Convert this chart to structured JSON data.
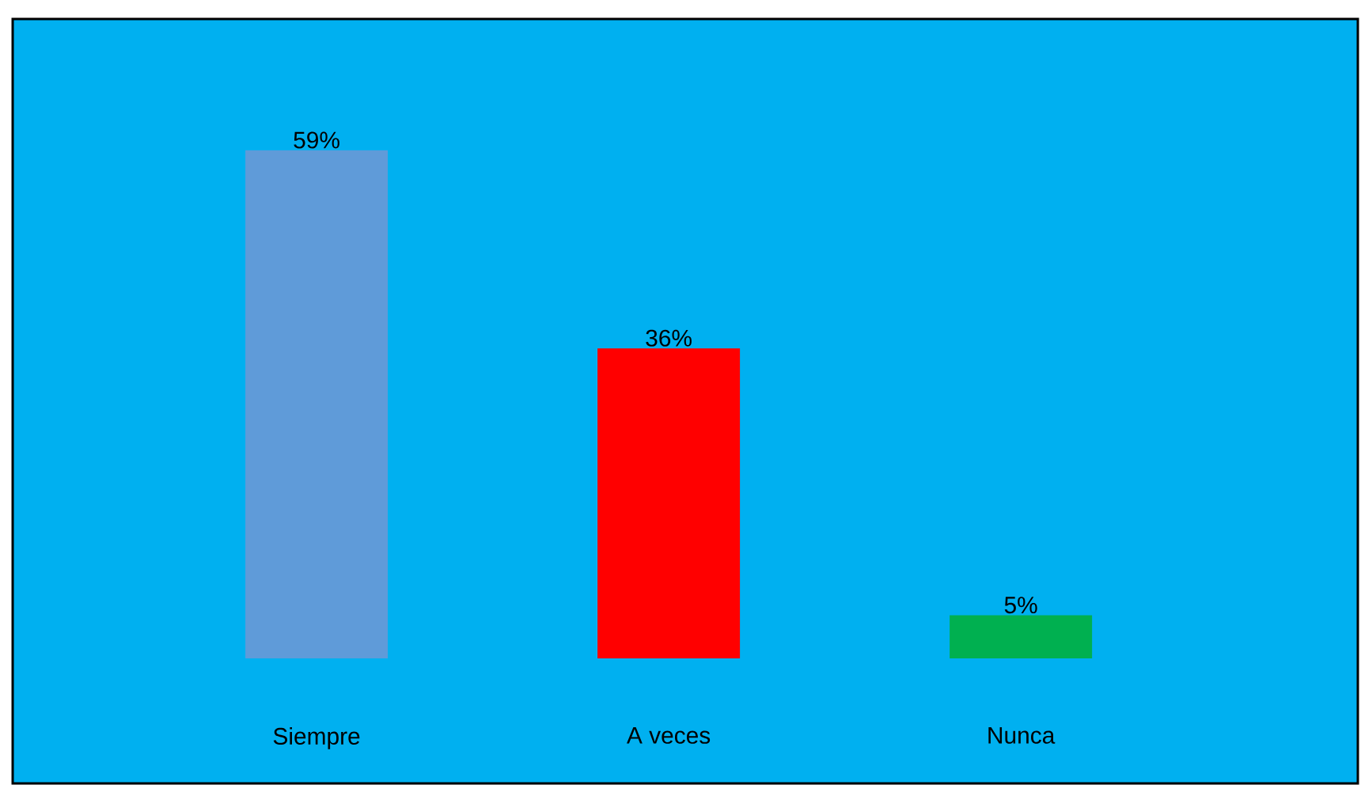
{
  "chart_data": {
    "type": "bar",
    "categories": [
      "Siempre",
      "A veces",
      "Nunca"
    ],
    "values": [
      59,
      36,
      5
    ],
    "colors": [
      "#5f9bd9",
      "#ff0000",
      "#00b050"
    ],
    "value_labels": [
      "59%",
      "36%",
      "5%"
    ]
  }
}
